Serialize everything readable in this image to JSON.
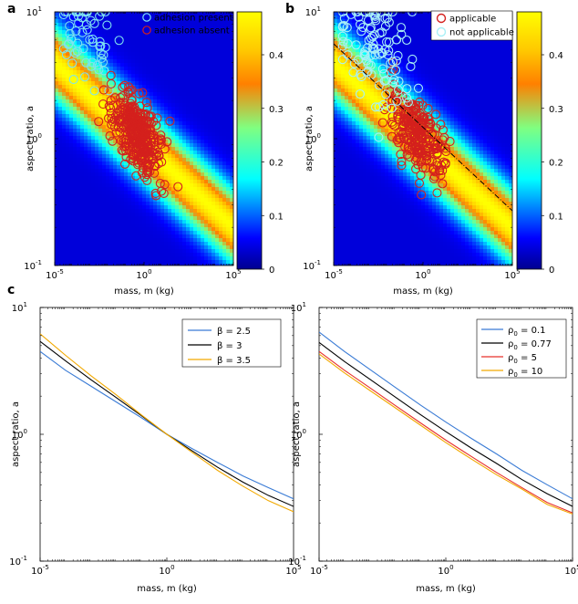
{
  "colors": {
    "adhesion_present": "#7fe3f0",
    "adhesion_absent": "#d4201d",
    "applicable": "#d4201d",
    "not_applicable": "#a8f0f6",
    "beta_2_5": "#3a7bd5",
    "beta_3": "#000000",
    "beta_3_5": "#f2a900",
    "rho_0_1": "#3a7bd5",
    "rho_0_77": "#000000",
    "rho_5": "#e8302a",
    "rho_10": "#f2a900"
  },
  "panels": {
    "a": "a",
    "b": "b",
    "c": "c"
  },
  "chart_data": [
    {
      "id": "a",
      "type": "heatmap",
      "title": "",
      "xlabel": "mass, m (kg)",
      "ylabel": "aspect ratio, a",
      "xscale": "log",
      "yscale": "log",
      "xlim": [
        1e-05,
        100000
      ],
      "ylim": [
        0.1,
        10
      ],
      "xticks": [
        {
          "base": "10",
          "exp": "-5",
          "value": 1e-05
        },
        {
          "base": "10",
          "exp": "0",
          "value": 1
        },
        {
          "base": "10",
          "exp": "5",
          "value": 100000
        }
      ],
      "yticks": [
        {
          "base": "10",
          "exp": "-1",
          "value": 0.1
        },
        {
          "base": "10",
          "exp": "0",
          "value": 1
        },
        {
          "base": "10",
          "exp": "1",
          "value": 10
        }
      ],
      "colorbar": {
        "range": [
          0,
          0.48
        ],
        "ticks": [
          "0",
          "0.1",
          "0.2",
          "0.3",
          "0.4"
        ]
      },
      "legend": [
        "adhesion present",
        "adhesion absent"
      ],
      "legend_position": "top-right",
      "series_summary": [
        {
          "name": "adhesion present",
          "approx_count": 60,
          "log_mass_range": [
            -4.5,
            1.5
          ],
          "log_aspect_range": [
            -0.1,
            1.0
          ]
        },
        {
          "name": "adhesion absent",
          "approx_count": 350,
          "log_mass_range": [
            -4.5,
            2.5
          ],
          "log_aspect_range": [
            -0.75,
            0.85
          ]
        }
      ]
    },
    {
      "id": "b",
      "type": "heatmap",
      "xlabel": "mass, m (kg)",
      "ylabel": "aspect ratio, a",
      "xscale": "log",
      "yscale": "log",
      "xlim": [
        1e-05,
        100000
      ],
      "ylim": [
        0.1,
        10
      ],
      "xticks": [
        {
          "base": "10",
          "exp": "-5",
          "value": 1e-05
        },
        {
          "base": "10",
          "exp": "0",
          "value": 1
        },
        {
          "base": "10",
          "exp": "5",
          "value": 100000
        }
      ],
      "yticks": [
        {
          "base": "10",
          "exp": "-1",
          "value": 0.1
        },
        {
          "base": "10",
          "exp": "0",
          "value": 1
        },
        {
          "base": "10",
          "exp": "1",
          "value": 10
        }
      ],
      "colorbar": {
        "range": [
          0,
          0.48
        ],
        "ticks": [
          "0",
          "0.1",
          "0.2",
          "0.3",
          "0.4"
        ]
      },
      "legend": [
        "applicable",
        "not applicable"
      ],
      "legend_position": "top-right",
      "fit_line": {
        "x": [
          1e-05,
          100000
        ],
        "y": [
          5.6,
          0.27
        ]
      },
      "series_summary": [
        {
          "name": "applicable",
          "approx_count": 260,
          "log_mass_range": [
            -3,
            2.5
          ],
          "log_aspect_range": [
            -0.55,
            0.6
          ]
        },
        {
          "name": "not applicable",
          "approx_count": 110,
          "log_mass_range": [
            -4.5,
            2.5
          ],
          "log_aspect_range": [
            -0.75,
            1.0
          ]
        }
      ]
    },
    {
      "id": "c-left",
      "type": "line",
      "xlabel": "mass, m (kg)",
      "ylabel": "aspect ratio, a",
      "xscale": "log",
      "yscale": "log",
      "xlim": [
        1e-05,
        100000
      ],
      "ylim": [
        0.1,
        10
      ],
      "xticks": [
        {
          "base": "10",
          "exp": "-5",
          "value": 1e-05
        },
        {
          "base": "10",
          "exp": "0",
          "value": 1
        },
        {
          "base": "10",
          "exp": "5",
          "value": 100000
        }
      ],
      "yticks": [
        {
          "base": "10",
          "exp": "-1",
          "value": 0.1
        },
        {
          "base": "10",
          "exp": "0",
          "value": 1
        },
        {
          "base": "10",
          "exp": "1",
          "value": 10
        }
      ],
      "legend_position": "top-right",
      "series": [
        {
          "name": "β = 2.5",
          "color_key": "beta_2_5",
          "x": [
            1e-05,
            0.0001,
            0.001,
            0.01,
            0.1,
            1,
            10,
            100,
            1000,
            10000,
            100000
          ],
          "y": [
            4.5,
            3.2,
            2.4,
            1.8,
            1.35,
            1.0,
            0.77,
            0.6,
            0.47,
            0.38,
            0.31
          ]
        },
        {
          "name": "β = 3",
          "color_key": "beta_3",
          "x": [
            1e-05,
            0.0001,
            0.001,
            0.01,
            0.1,
            1,
            10,
            100,
            1000,
            10000,
            100000
          ],
          "y": [
            5.4,
            3.8,
            2.7,
            1.95,
            1.4,
            1.0,
            0.74,
            0.55,
            0.42,
            0.33,
            0.27
          ]
        },
        {
          "name": "β = 3.5",
          "color_key": "beta_3_5",
          "x": [
            1e-05,
            0.0001,
            0.001,
            0.01,
            0.1,
            1,
            10,
            100,
            1000,
            10000,
            100000
          ],
          "y": [
            6.2,
            4.2,
            2.9,
            2.05,
            1.42,
            1.0,
            0.72,
            0.52,
            0.39,
            0.3,
            0.245
          ]
        }
      ]
    },
    {
      "id": "c-right",
      "type": "line",
      "xlabel": "mass, m (kg)",
      "ylabel": "aspect ratio, a",
      "xscale": "log",
      "yscale": "log",
      "xlim": [
        1e-05,
        100000
      ],
      "ylim": [
        0.1,
        10
      ],
      "xticks": [
        {
          "base": "10",
          "exp": "-5",
          "value": 1e-05
        },
        {
          "base": "10",
          "exp": "0",
          "value": 1
        },
        {
          "base": "10",
          "exp": "5",
          "value": 100000
        }
      ],
      "yticks": [
        {
          "base": "10",
          "exp": "-1",
          "value": 0.1
        },
        {
          "base": "10",
          "exp": "0",
          "value": 1
        },
        {
          "base": "10",
          "exp": "1",
          "value": 10
        }
      ],
      "legend_position": "top-right",
      "series": [
        {
          "name_prefix": "ρ",
          "name_sub": "0",
          "name_value": "= 0.1",
          "color_key": "rho_0_1",
          "x": [
            1e-05,
            0.0001,
            0.001,
            0.01,
            0.1,
            1,
            10,
            100,
            1000,
            10000,
            100000
          ],
          "y": [
            6.4,
            4.5,
            3.25,
            2.35,
            1.7,
            1.25,
            0.93,
            0.7,
            0.52,
            0.4,
            0.31
          ]
        },
        {
          "name_prefix": "ρ",
          "name_sub": "0",
          "name_value": "= 0.77",
          "color_key": "rho_0_77",
          "x": [
            1e-05,
            0.0001,
            0.001,
            0.01,
            0.1,
            1,
            10,
            100,
            1000,
            10000,
            100000
          ],
          "y": [
            5.3,
            3.75,
            2.72,
            1.97,
            1.43,
            1.05,
            0.78,
            0.59,
            0.44,
            0.34,
            0.27
          ]
        },
        {
          "name_prefix": "ρ",
          "name_sub": "0",
          "name_value": "= 5",
          "color_key": "rho_5",
          "x": [
            1e-05,
            0.0001,
            0.001,
            0.01,
            0.1,
            1,
            10,
            100,
            1000,
            10000,
            100000
          ],
          "y": [
            4.5,
            3.2,
            2.33,
            1.69,
            1.23,
            0.9,
            0.67,
            0.5,
            0.38,
            0.29,
            0.24
          ]
        },
        {
          "name_prefix": "ρ",
          "name_sub": "0",
          "name_value": "= 10",
          "color_key": "rho_10",
          "x": [
            1e-05,
            0.0001,
            0.001,
            0.01,
            0.1,
            1,
            10,
            100,
            1000,
            10000,
            100000
          ],
          "y": [
            4.3,
            3.05,
            2.22,
            1.62,
            1.18,
            0.86,
            0.64,
            0.48,
            0.37,
            0.28,
            0.235
          ]
        }
      ]
    }
  ]
}
